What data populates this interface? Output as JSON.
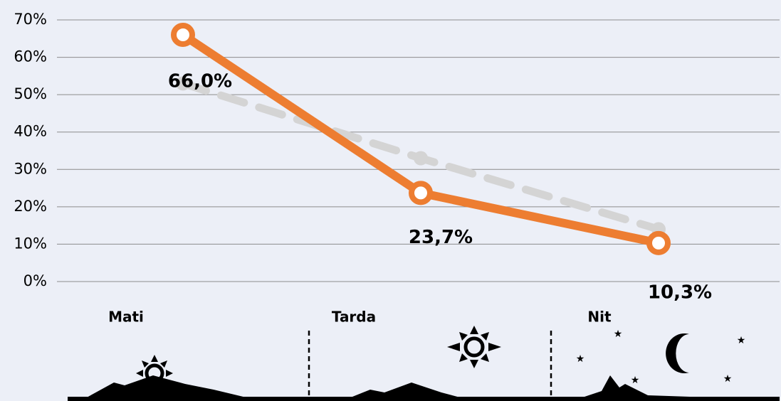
{
  "chart_data": {
    "type": "line",
    "categories": [
      "Mati",
      "Tarda",
      "Nit"
    ],
    "series": [
      {
        "color": "#d4d4d4",
        "dashed": true,
        "values": [
          53,
          33,
          14
        ]
      },
      {
        "color": "#ed7d31",
        "values": [
          66.0,
          23.7,
          10.3
        ],
        "value_labels": [
          "66,0%",
          "23,7%",
          "10,3%"
        ]
      }
    ],
    "ylim": [
      0,
      70
    ],
    "yticks": [
      {
        "value": 0,
        "label": "0%"
      },
      {
        "value": 10,
        "label": "10%"
      },
      {
        "value": 20,
        "label": "20%"
      },
      {
        "value": 30,
        "label": "30%"
      },
      {
        "value": 40,
        "label": "40%"
      },
      {
        "value": 50,
        "label": "50%"
      },
      {
        "value": 60,
        "label": "60%"
      },
      {
        "value": 70,
        "label": "70%"
      }
    ],
    "grid": true
  }
}
